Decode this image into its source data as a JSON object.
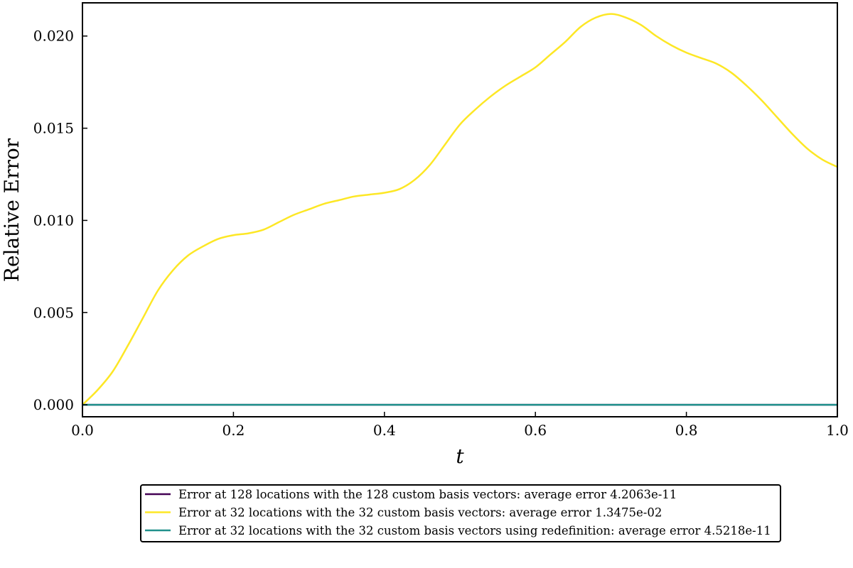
{
  "chart_data": {
    "type": "line",
    "title": "",
    "xlabel": "t",
    "ylabel": "Relative Error",
    "xlim": [
      0.0,
      1.0
    ],
    "ylim": [
      -0.00065,
      0.0218
    ],
    "x_ticks": [
      "0.0",
      "0.2",
      "0.4",
      "0.6",
      "0.8",
      "1.0"
    ],
    "y_ticks": [
      "0.000",
      "0.005",
      "0.010",
      "0.015",
      "0.020"
    ],
    "grid": false,
    "legend_position": "bottom-center (below axes)",
    "series": [
      {
        "name": "Error at 128 locations with the 128 custom basis vectors: average error 4.2063e-11",
        "color": "#440154",
        "x": [
          0.0,
          0.1,
          0.2,
          0.3,
          0.4,
          0.5,
          0.6,
          0.7,
          0.8,
          0.9,
          1.0
        ],
        "values": [
          0,
          0,
          0,
          0,
          0,
          0,
          0,
          0,
          0,
          0,
          0
        ]
      },
      {
        "name": "Error at 32 locations with the 32 custom basis vectors: average error 1.3475e-02",
        "color": "#fde725",
        "x": [
          0.0,
          0.02,
          0.04,
          0.06,
          0.08,
          0.1,
          0.12,
          0.14,
          0.16,
          0.18,
          0.2,
          0.22,
          0.24,
          0.26,
          0.28,
          0.3,
          0.32,
          0.34,
          0.36,
          0.38,
          0.4,
          0.42,
          0.44,
          0.46,
          0.48,
          0.5,
          0.52,
          0.54,
          0.56,
          0.58,
          0.6,
          0.62,
          0.64,
          0.66,
          0.68,
          0.7,
          0.72,
          0.74,
          0.76,
          0.78,
          0.8,
          0.82,
          0.84,
          0.86,
          0.88,
          0.9,
          0.92,
          0.94,
          0.96,
          0.98,
          1.0
        ],
        "values": [
          0.0,
          0.0008,
          0.0018,
          0.0032,
          0.0047,
          0.0062,
          0.0073,
          0.0081,
          0.0086,
          0.009,
          0.0092,
          0.0093,
          0.0095,
          0.0099,
          0.0103,
          0.0106,
          0.0109,
          0.0111,
          0.0113,
          0.0114,
          0.0115,
          0.0117,
          0.0122,
          0.013,
          0.0141,
          0.0152,
          0.016,
          0.0167,
          0.0173,
          0.0178,
          0.0183,
          0.019,
          0.0197,
          0.0205,
          0.021,
          0.0212,
          0.021,
          0.0206,
          0.02,
          0.0195,
          0.0191,
          0.0188,
          0.0185,
          0.018,
          0.0173,
          0.0165,
          0.0156,
          0.0147,
          0.0139,
          0.0133,
          0.0129
        ]
      },
      {
        "name": "Error at 32 locations with the 32 custom basis vectors using redefinition: average error 4.5218e-11",
        "color": "#21918c",
        "x": [
          0.0,
          0.1,
          0.2,
          0.3,
          0.4,
          0.5,
          0.6,
          0.7,
          0.8,
          0.9,
          1.0
        ],
        "values": [
          0,
          0,
          0,
          0,
          0,
          0,
          0,
          0,
          0,
          0,
          0
        ]
      }
    ]
  }
}
